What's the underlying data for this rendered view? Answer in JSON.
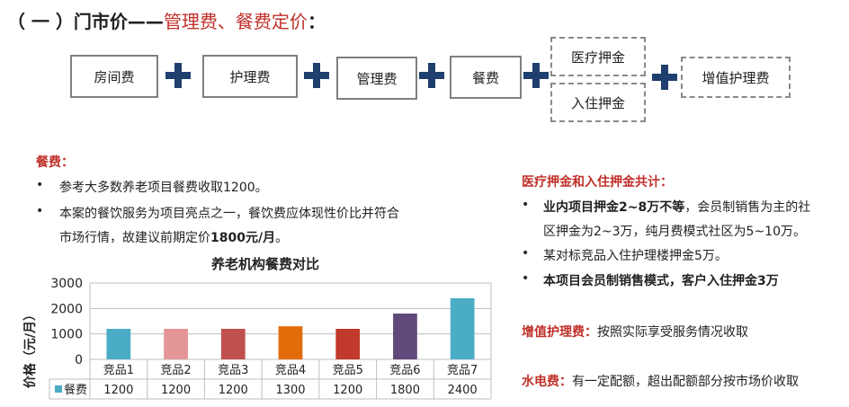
{
  "header": {
    "title_prefix": "（ 一 ）门市价——",
    "title_highlight": "管理费、餐费定价",
    "title_suffix": "："
  },
  "fees": {
    "room": "房间费",
    "care": "护理费",
    "management": "管理费",
    "meal": "餐费",
    "medical_deposit": "医疗押金",
    "entry_deposit": "入住押金",
    "extra_care": "增值护理费"
  },
  "meal_section": {
    "heading": "餐费：",
    "bullet1": "参考大多数养老项目餐费收取1200。",
    "bullet2_line1": "本案的餐饮服务为项目亮点之一，餐饮费应体现性价比并符合",
    "bullet2_line2_prefix": "市场行情，故建议前期定价",
    "bullet2_line2_bold": "1800元/月",
    "bullet2_line2_suffix": "。"
  },
  "deposit_section": {
    "heading": "医疗押金和入住押金共计：",
    "bullet1_bold": "业内项目押金2~8万不等",
    "bullet1_rest": "，会员制销售为主的社",
    "bullet1_line2": "区押金为2~3万，纯月费模式社区为5~10万。",
    "bullet2": "某对标竞品入住护理楼押金5万。",
    "bullet3": "本项目会员制销售模式，客户入住押金3万"
  },
  "extra_care_section": {
    "label": "增值护理费：",
    "text": "按照实际享受服务情况收取"
  },
  "utility_section": {
    "label": "水电费：",
    "text": "有一定配额，超出配额部分按市场价收取"
  },
  "bullet_symbol": "•",
  "chart_data": {
    "type": "bar",
    "title": "养老机构餐费对比",
    "ylabel": "价格（元/月）",
    "categories": [
      "竞品1",
      "竞品2",
      "竞品3",
      "竞品4",
      "竞品5",
      "竞品6",
      "竞品7"
    ],
    "series": [
      {
        "name": "餐费",
        "values": [
          1200,
          1200,
          1200,
          1300,
          1200,
          1800,
          2400
        ]
      }
    ],
    "bar_colors": [
      "#4bacc6",
      "#e49595",
      "#c0504d",
      "#e36c0a",
      "#c0392b",
      "#604a7b",
      "#4bacc6"
    ],
    "yticks": [
      0,
      1000,
      2000,
      3000
    ],
    "ylim": [
      0,
      3000
    ],
    "value_labels": [
      "1200",
      "1200",
      "1200",
      "1300",
      "1200",
      "1800",
      "2400"
    ],
    "ytick_labels": [
      "0",
      "1000",
      "2000",
      "3000"
    ],
    "legend_color": "#4bacc6",
    "grid": true,
    "data_table": true
  }
}
